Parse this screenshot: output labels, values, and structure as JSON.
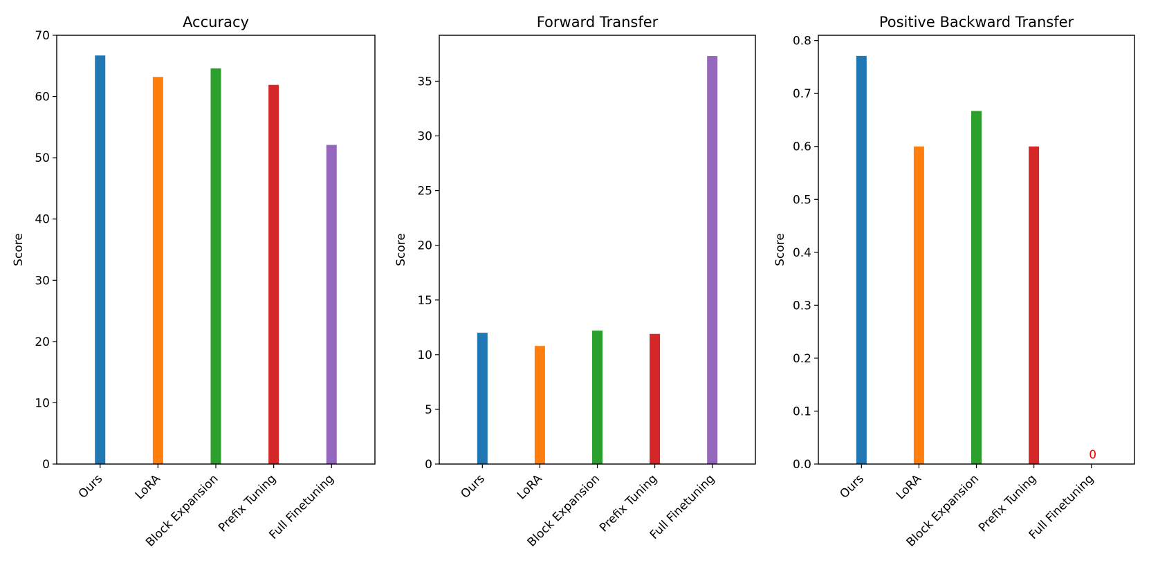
{
  "chart_data": [
    {
      "type": "bar",
      "title": "Accuracy",
      "xlabel": "",
      "ylabel": "Score",
      "categories": [
        "Ours",
        "LoRA",
        "Block Expansion",
        "Prefix Tuning",
        "Full Finetuning"
      ],
      "values": [
        66.7,
        63.2,
        64.6,
        61.9,
        52.1
      ],
      "colors": [
        "#1f77b4",
        "#ff7f0e",
        "#2ca02c",
        "#d62728",
        "#9467bd"
      ],
      "ylim": [
        0,
        70
      ],
      "yticks": [
        0,
        10,
        20,
        30,
        40,
        50,
        60,
        70
      ],
      "ytick_labels": [
        "0",
        "10",
        "20",
        "30",
        "40",
        "50",
        "60",
        "70"
      ],
      "annotations": [],
      "grid": false
    },
    {
      "type": "bar",
      "title": "Forward Transfer",
      "xlabel": "",
      "ylabel": "Score",
      "categories": [
        "Ours",
        "LoRA",
        "Block Expansion",
        "Prefix Tuning",
        "Full Finetuning"
      ],
      "values": [
        12.0,
        10.8,
        12.2,
        11.9,
        37.3
      ],
      "colors": [
        "#1f77b4",
        "#ff7f0e",
        "#2ca02c",
        "#d62728",
        "#9467bd"
      ],
      "ylim": [
        0,
        39.2
      ],
      "yticks": [
        0,
        5,
        10,
        15,
        20,
        25,
        30,
        35
      ],
      "ytick_labels": [
        "0",
        "5",
        "10",
        "15",
        "20",
        "25",
        "30",
        "35"
      ],
      "annotations": [],
      "grid": false
    },
    {
      "type": "bar",
      "title": "Positive Backward Transfer",
      "xlabel": "",
      "ylabel": "Score",
      "categories": [
        "Ours",
        "LoRA",
        "Block Expansion",
        "Prefix Tuning",
        "Full Finetuning"
      ],
      "values": [
        0.771,
        0.6,
        0.667,
        0.6,
        0
      ],
      "colors": [
        "#1f77b4",
        "#ff7f0e",
        "#2ca02c",
        "#d62728",
        "#9467bd"
      ],
      "ylim": [
        0,
        0.81
      ],
      "yticks": [
        0,
        0.1,
        0.2,
        0.3,
        0.4,
        0.5,
        0.6,
        0.7,
        0.8
      ],
      "ytick_labels": [
        "0.0",
        "0.1",
        "0.2",
        "0.3",
        "0.4",
        "0.5",
        "0.6",
        "0.7",
        "0.8"
      ],
      "annotations": [
        {
          "category_index": 4,
          "value": 0,
          "text": "0",
          "color": "#ff0000"
        }
      ],
      "grid": false
    }
  ]
}
